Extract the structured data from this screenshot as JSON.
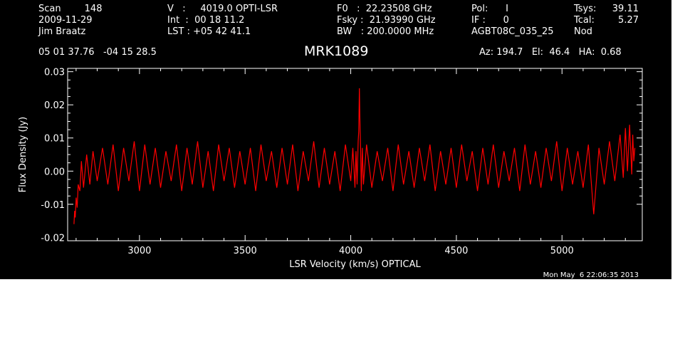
{
  "header": {
    "col1": [
      "Scan        148",
      "2009-11-29",
      "Jim Braatz"
    ],
    "col2": [
      "V   :     4019.0 OPTI-LSR",
      "Int  :  00 18 11.2",
      "LST : +05 42 41.1"
    ],
    "col3": [
      "F0   :  22.23508 GHz",
      "Fsky :  21.93990 GHz",
      "BW   : 200.0000 MHz"
    ],
    "col4": [
      "Pol:      I",
      "IF :      0",
      "AGBT08C_035_25"
    ],
    "col5_labels": [
      "Tsys:",
      "Tcal:",
      "Nod"
    ],
    "col5_values": [
      "39.11",
      "5.27",
      ""
    ],
    "coords": "05 01 37.76   -04 15 28.5",
    "source": "MRK1089",
    "pointing": "Az: 194.7   El:  46.4   HA:  0.68",
    "timestamp": "Mon May  6 22:06:35 2013"
  },
  "colors": {
    "background": "#000000",
    "axes": "#ffffff",
    "series": "#ff0000"
  },
  "chart_data": {
    "type": "line",
    "title": "MRK1089",
    "xlabel": "LSR Velocity (km/s) OPTICAL",
    "ylabel": "Flux Density (Jy)",
    "xlim": [
      2660,
      5380
    ],
    "ylim": [
      -0.021,
      0.031
    ],
    "xticks": [
      3000,
      3500,
      4000,
      4500,
      5000
    ],
    "xtick_labels": [
      "3000",
      "3500",
      "4000",
      "4500",
      "5000"
    ],
    "yticks": [
      -0.02,
      -0.01,
      0.0,
      0.01,
      0.02,
      0.03
    ],
    "ytick_labels": [
      "-0.02",
      "-0.01",
      "0.00",
      "0.01",
      "0.02",
      "0.03"
    ],
    "grid": false,
    "legend": "none",
    "series": [
      {
        "x": [
          2690,
          2693,
          2696,
          2700,
          2705,
          2710,
          2718,
          2725,
          2735,
          2750,
          2765,
          2780,
          2800,
          2825,
          2850,
          2875,
          2900,
          2925,
          2950,
          2975,
          3000,
          3025,
          3050,
          3075,
          3100,
          3125,
          3150,
          3175,
          3200,
          3225,
          3250,
          3275,
          3300,
          3325,
          3350,
          3375,
          3400,
          3425,
          3450,
          3475,
          3500,
          3525,
          3550,
          3575,
          3600,
          3625,
          3650,
          3675,
          3700,
          3725,
          3750,
          3775,
          3800,
          3825,
          3850,
          3875,
          3900,
          3925,
          3950,
          3975,
          4000,
          4010,
          4020,
          4025,
          4030,
          4035,
          4038,
          4041,
          4044,
          4047,
          4050,
          4055,
          4060,
          4075,
          4100,
          4125,
          4150,
          4175,
          4200,
          4225,
          4250,
          4275,
          4300,
          4325,
          4350,
          4375,
          4400,
          4425,
          4450,
          4475,
          4500,
          4525,
          4550,
          4575,
          4600,
          4625,
          4650,
          4675,
          4700,
          4725,
          4750,
          4775,
          4800,
          4825,
          4850,
          4875,
          4900,
          4925,
          4950,
          4975,
          5000,
          5025,
          5050,
          5075,
          5100,
          5125,
          5150,
          5175,
          5200,
          5225,
          5250,
          5275,
          5290,
          5300,
          5310,
          5320,
          5330,
          5335,
          5340,
          5345
        ],
        "y": [
          -0.016,
          -0.012,
          -0.014,
          -0.008,
          -0.011,
          -0.004,
          -0.006,
          0.003,
          -0.005,
          0.005,
          -0.004,
          0.006,
          -0.003,
          0.007,
          -0.004,
          0.008,
          -0.006,
          0.007,
          -0.003,
          0.009,
          -0.006,
          0.008,
          -0.004,
          0.007,
          -0.005,
          0.006,
          -0.003,
          0.008,
          -0.006,
          0.007,
          -0.004,
          0.009,
          -0.005,
          0.006,
          -0.006,
          0.008,
          -0.003,
          0.007,
          -0.005,
          0.006,
          -0.004,
          0.007,
          -0.006,
          0.008,
          -0.003,
          0.006,
          -0.005,
          0.007,
          -0.004,
          0.008,
          -0.006,
          0.006,
          -0.003,
          0.009,
          -0.005,
          0.007,
          -0.004,
          0.006,
          -0.006,
          0.008,
          -0.003,
          0.007,
          -0.005,
          0.006,
          -0.004,
          0.009,
          0.012,
          0.025,
          0.014,
          0.006,
          -0.006,
          0.007,
          -0.004,
          0.008,
          -0.005,
          0.006,
          -0.003,
          0.007,
          -0.006,
          0.008,
          -0.004,
          0.006,
          -0.005,
          0.007,
          -0.003,
          0.008,
          -0.006,
          0.006,
          -0.004,
          0.007,
          -0.005,
          0.008,
          -0.003,
          0.006,
          -0.006,
          0.007,
          -0.004,
          0.008,
          -0.005,
          0.006,
          -0.003,
          0.007,
          -0.006,
          0.008,
          -0.004,
          0.006,
          -0.005,
          0.007,
          -0.003,
          0.009,
          -0.006,
          0.007,
          -0.004,
          0.006,
          -0.005,
          0.008,
          -0.013,
          0.007,
          -0.004,
          0.009,
          -0.003,
          0.011,
          -0.002,
          0.013,
          0.0,
          0.014,
          -0.001,
          0.011,
          0.003,
          0.007
        ]
      }
    ]
  }
}
